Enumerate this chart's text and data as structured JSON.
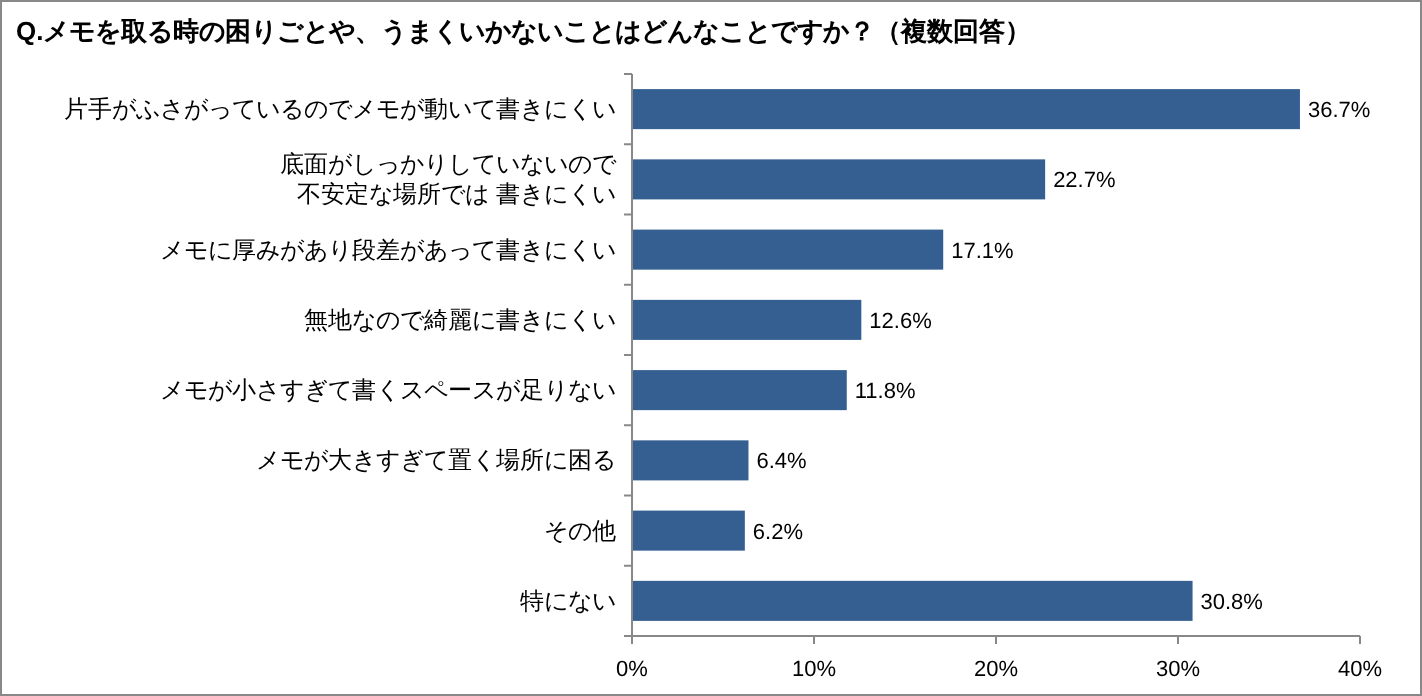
{
  "chart_data": {
    "type": "bar",
    "orientation": "horizontal",
    "title": "Q.メモを取る時の困りごとや、うまくいかないことはどんなことですか？（複数回答）",
    "categories": [
      "片手がふさがっているのでメモが動いて書きにくい",
      "底面がしっかりしていないので不安定な場所では 書きにくい",
      "メモに厚みがあり段差があって書きにくい",
      "無地なので綺麗に書きにくい",
      "メモが小さすぎて書くスペースが足りない",
      "メモが大きすぎて置く場所に困る",
      "その他",
      "特にない"
    ],
    "values": [
      36.7,
      22.7,
      17.1,
      12.6,
      11.8,
      6.4,
      6.2,
      30.8
    ],
    "value_labels": [
      "36.7%",
      "22.7%",
      "17.1%",
      "12.6%",
      "11.8%",
      "6.4%",
      "6.2%",
      "30.8%"
    ],
    "color": "#365f91",
    "xlim": [
      0,
      40
    ],
    "xticks": [
      {
        "value": 0,
        "label": "0%"
      },
      {
        "value": 10,
        "label": "10%"
      },
      {
        "value": 20,
        "label": "20%"
      },
      {
        "value": 30,
        "label": "30%"
      },
      {
        "value": 40,
        "label": "40%"
      }
    ]
  }
}
